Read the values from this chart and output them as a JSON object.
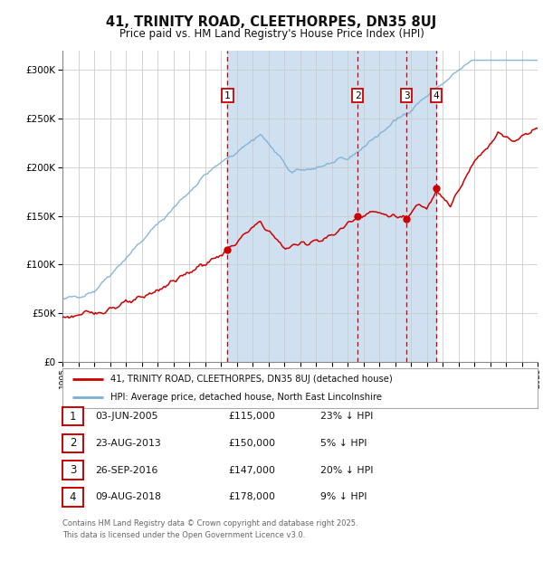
{
  "title_line1": "41, TRINITY ROAD, CLEETHORPES, DN35 8UJ",
  "title_line2": "Price paid vs. HM Land Registry's House Price Index (HPI)",
  "background_color": "#ffffff",
  "plot_bg_color": "#ffffff",
  "shaded_region_color": "#cfe0f0",
  "hpi_line_color": "#7bafd4",
  "price_line_color": "#cc0000",
  "dashed_line_color": "#cc0000",
  "grid_color": "#cccccc",
  "ylim": [
    0,
    320000
  ],
  "yticks": [
    0,
    50000,
    100000,
    150000,
    200000,
    250000,
    300000
  ],
  "x_start_year": 1995,
  "x_end_year": 2025,
  "purchases": [
    {
      "label": "1",
      "date": "03-JUN-2005",
      "year": 2005.42,
      "price": 115000,
      "pct": "23%",
      "direction": "↓"
    },
    {
      "label": "2",
      "date": "23-AUG-2013",
      "year": 2013.64,
      "price": 150000,
      "pct": "5%",
      "direction": "↓"
    },
    {
      "label": "3",
      "date": "26-SEP-2016",
      "year": 2016.73,
      "price": 147000,
      "pct": "20%",
      "direction": "↓"
    },
    {
      "label": "4",
      "date": "09-AUG-2018",
      "year": 2018.6,
      "price": 178000,
      "pct": "9%",
      "direction": "↓"
    }
  ],
  "legend_line1": "41, TRINITY ROAD, CLEETHORPES, DN35 8UJ (detached house)",
  "legend_line2": "HPI: Average price, detached house, North East Lincolnshire",
  "footer_line1": "Contains HM Land Registry data © Crown copyright and database right 2025.",
  "footer_line2": "This data is licensed under the Open Government Licence v3.0."
}
